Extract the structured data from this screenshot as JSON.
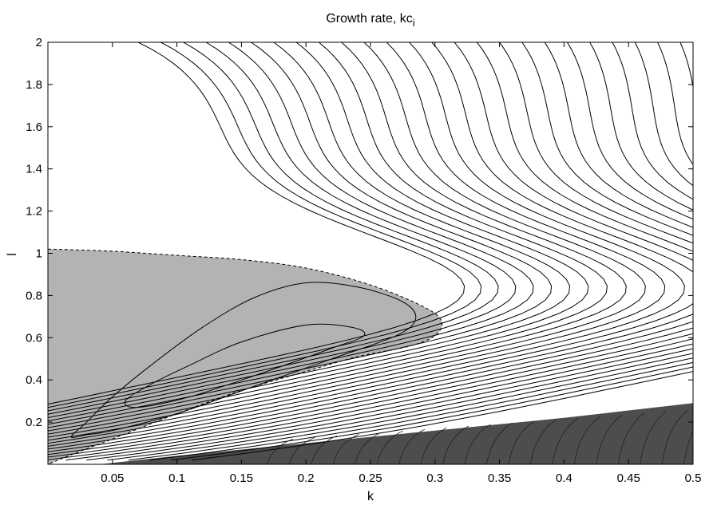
{
  "chart_data": {
    "type": "contour",
    "title": "Growth rate, kc",
    "title_subscript": "i",
    "xlabel": "k",
    "ylabel": "l",
    "xlim": [
      0,
      0.5
    ],
    "ylim": [
      0,
      2
    ],
    "xticks": [
      0.05,
      0.1,
      0.15,
      0.2,
      0.25,
      0.3,
      0.35,
      0.4,
      0.45,
      0.5
    ],
    "xtick_labels": [
      "0.05",
      "0.1",
      "0.15",
      "0.2",
      "0.25",
      "0.3",
      "0.35",
      "0.4",
      "0.45",
      "0.5"
    ],
    "yticks": [
      0.2,
      0.4,
      0.6,
      0.8,
      1,
      1.2,
      1.4,
      1.6,
      1.8,
      2
    ],
    "ytick_labels": [
      "0.2",
      "0.4",
      "0.6",
      "0.8",
      "1",
      "1.2",
      "1.4",
      "1.6",
      "1.8",
      "2"
    ],
    "grid": false,
    "colors": {
      "unstable_fill": "#b3b3b3",
      "lower_fill": "#4d4d4d",
      "contour_line": "#000000",
      "background": "#ffffff"
    },
    "unstable_region": {
      "boundary": [
        [
          0.0,
          1.02
        ],
        [
          0.05,
          1.01
        ],
        [
          0.1,
          0.99
        ],
        [
          0.15,
          0.97
        ],
        [
          0.2,
          0.93
        ],
        [
          0.25,
          0.85
        ],
        [
          0.29,
          0.75
        ],
        [
          0.305,
          0.68
        ],
        [
          0.3,
          0.61
        ],
        [
          0.28,
          0.56
        ],
        [
          0.24,
          0.51
        ],
        [
          0.2,
          0.44
        ],
        [
          0.15,
          0.35
        ],
        [
          0.1,
          0.24
        ],
        [
          0.05,
          0.12
        ],
        [
          0.02,
          0.05
        ],
        [
          0.0,
          0.0
        ]
      ]
    },
    "lower_region": {
      "upper_edge": [
        [
          0.04,
          0.0
        ],
        [
          0.1,
          0.04
        ],
        [
          0.2,
          0.1
        ],
        [
          0.3,
          0.16
        ],
        [
          0.4,
          0.22
        ],
        [
          0.5,
          0.29
        ]
      ]
    },
    "closed_contours": [
      [
        [
          0.018,
          0.13
        ],
        [
          0.03,
          0.2
        ],
        [
          0.05,
          0.32
        ],
        [
          0.08,
          0.47
        ],
        [
          0.12,
          0.65
        ],
        [
          0.16,
          0.79
        ],
        [
          0.2,
          0.86
        ],
        [
          0.24,
          0.84
        ],
        [
          0.275,
          0.77
        ],
        [
          0.285,
          0.69
        ],
        [
          0.27,
          0.61
        ],
        [
          0.22,
          0.5
        ],
        [
          0.16,
          0.37
        ],
        [
          0.1,
          0.24
        ],
        [
          0.05,
          0.16
        ],
        [
          0.03,
          0.14
        ],
        [
          0.018,
          0.13
        ]
      ],
      [
        [
          0.06,
          0.3
        ],
        [
          0.08,
          0.38
        ],
        [
          0.11,
          0.47
        ],
        [
          0.15,
          0.58
        ],
        [
          0.2,
          0.66
        ],
        [
          0.235,
          0.65
        ],
        [
          0.245,
          0.61
        ],
        [
          0.22,
          0.55
        ],
        [
          0.16,
          0.42
        ],
        [
          0.11,
          0.32
        ],
        [
          0.07,
          0.27
        ],
        [
          0.06,
          0.3
        ]
      ]
    ]
  }
}
